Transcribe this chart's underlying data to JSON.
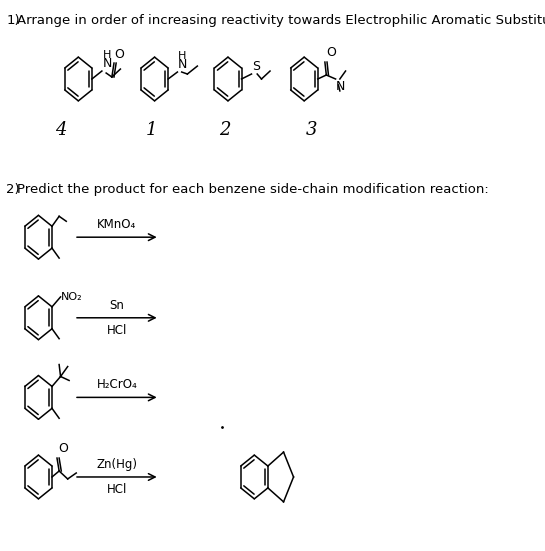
{
  "background_color": "#ffffff",
  "figsize": [
    5.45,
    5.51
  ],
  "dpi": 100,
  "q1_label": "1)",
  "q1_text": "Arrange in order of increasing reactivity towards Electrophilic Aromatic Substitution",
  "q2_label": "2)",
  "q2_text": "Predict the product for each benzene side-chain modification reaction:",
  "q1_numbers": [
    "4",
    "1",
    "2",
    "3"
  ],
  "reactions": [
    {
      "reagent_line1": "KMnO₄",
      "reagent_line2": ""
    },
    {
      "reagent_line1": "Sn",
      "reagent_line2": "HCl"
    },
    {
      "reagent_line1": "H₂CrO₄",
      "reagent_line2": ""
    },
    {
      "reagent_line1": "Zn(Hg)",
      "reagent_line2": "HCl"
    }
  ],
  "text_color": "#000000",
  "font_size_main": 9.5,
  "font_size_label": 9.5,
  "font_size_number": 13,
  "font_size_reagent": 8.5,
  "font_size_atom": 8
}
